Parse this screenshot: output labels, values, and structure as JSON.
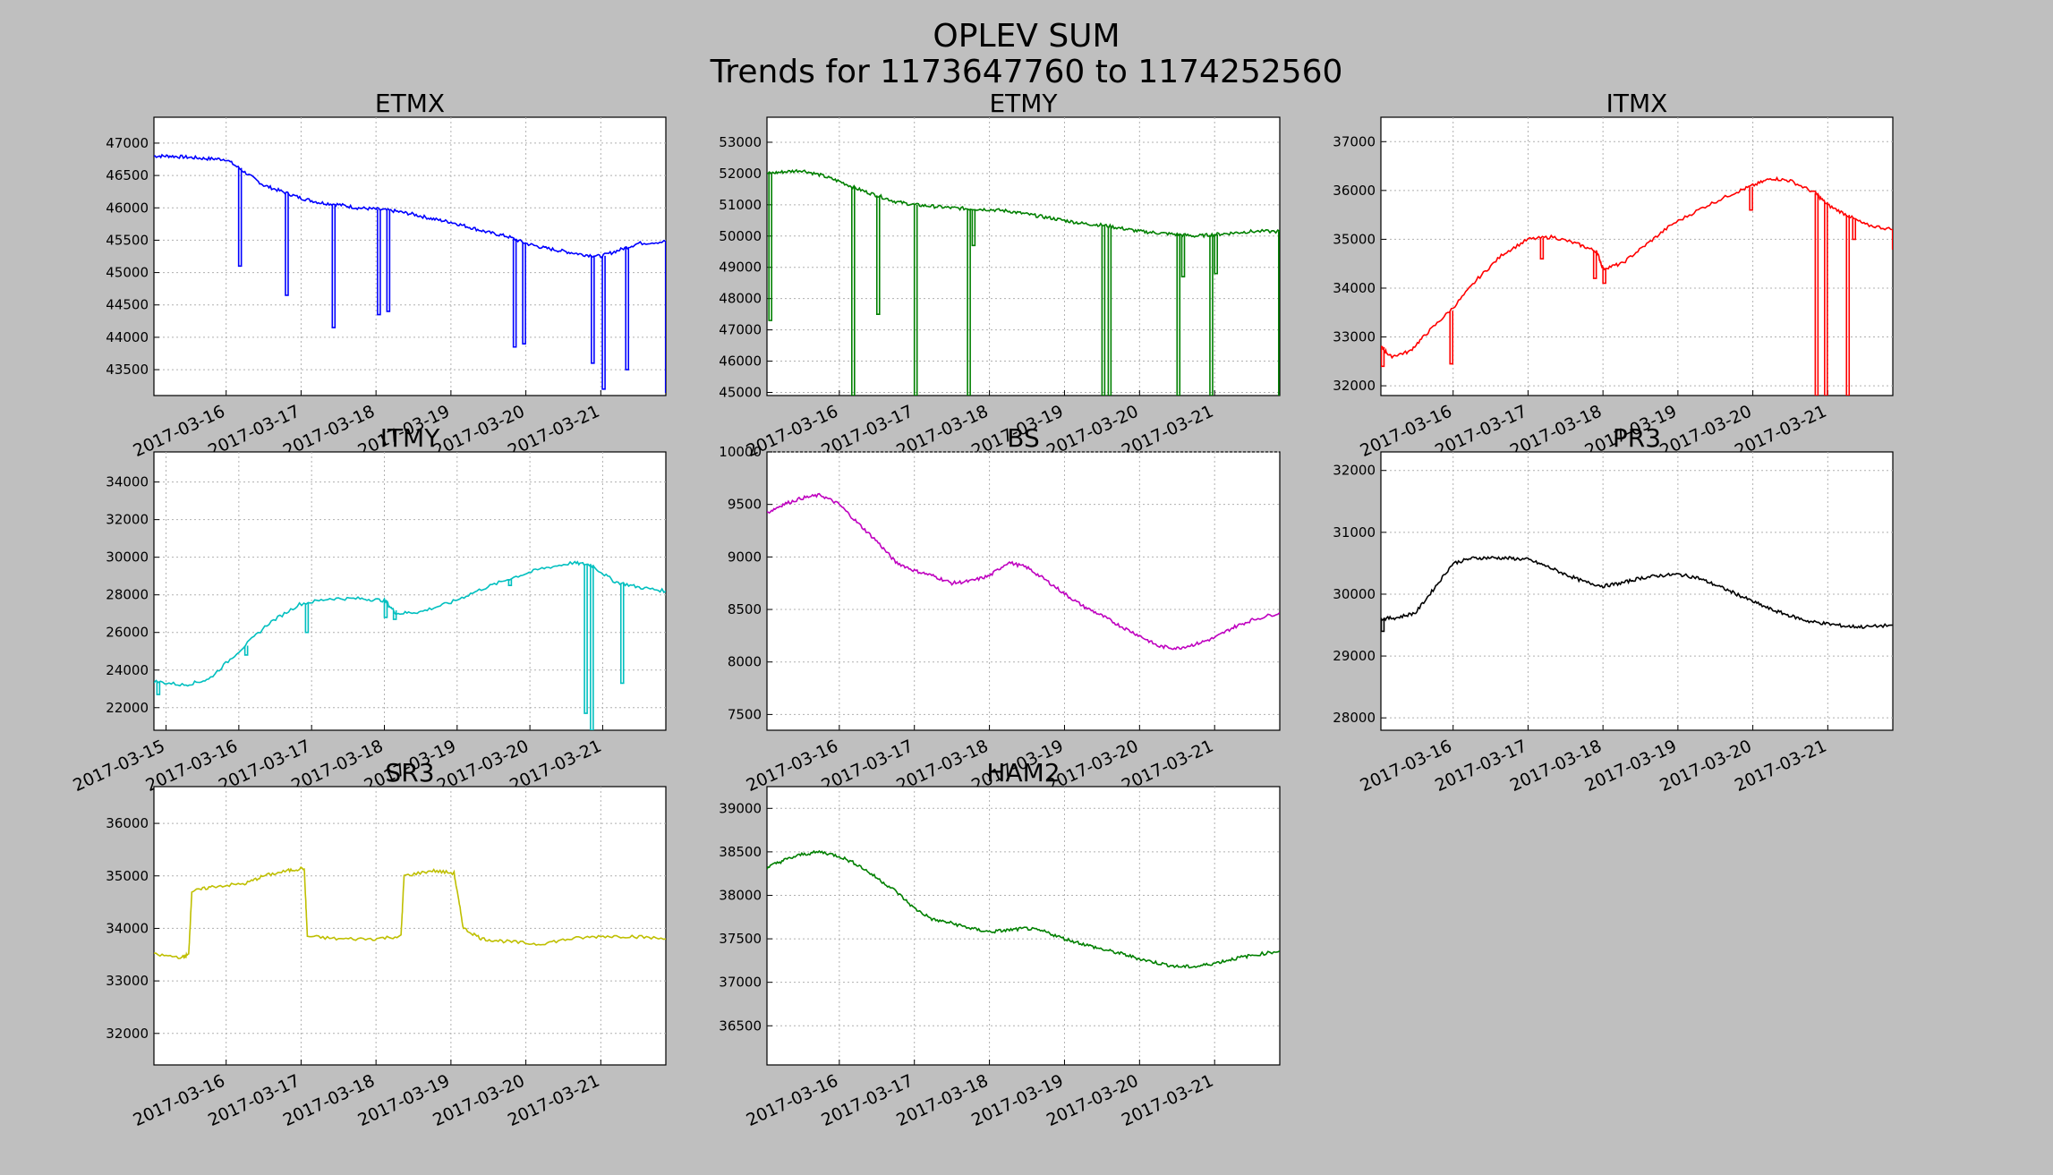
{
  "figure": {
    "title_line1": "OPLEV SUM",
    "title_line2": "Trends for 1173647760 to 1174252560"
  },
  "chart_data": [
    {
      "type": "line",
      "title": "ETMX",
      "color": "#0000ff",
      "xlim": [
        "2017-03-15T00:52",
        "2017-03-21T20:50"
      ],
      "xticks": [
        "2017-03-16",
        "2017-03-17",
        "2017-03-18",
        "2017-03-19",
        "2017-03-20",
        "2017-03-21"
      ],
      "ylim": [
        43100,
        47400
      ],
      "yticks": [
        43500,
        44000,
        44500,
        45000,
        45500,
        46000,
        46500,
        47000
      ],
      "grid": true,
      "series": [
        {
          "x": [
            "2017-03-15T00:52",
            "2017-03-15T06:00",
            "2017-03-15T12:00",
            "2017-03-15T18:00",
            "2017-03-16T00:00",
            "2017-03-16T06:00",
            "2017-03-16T12:00",
            "2017-03-16T18:00",
            "2017-03-17T00:00",
            "2017-03-17T06:00",
            "2017-03-17T12:00",
            "2017-03-17T18:00",
            "2017-03-18T00:00",
            "2017-03-18T06:00",
            "2017-03-18T12:00",
            "2017-03-18T18:00",
            "2017-03-19T00:00",
            "2017-03-19T06:00",
            "2017-03-19T12:00",
            "2017-03-19T18:00",
            "2017-03-20T00:00",
            "2017-03-20T06:00",
            "2017-03-20T12:00",
            "2017-03-20T18:00",
            "2017-03-21T00:00",
            "2017-03-21T06:00",
            "2017-03-21T12:00",
            "2017-03-21T20:50"
          ],
          "values": [
            46800,
            46800,
            46780,
            46760,
            46750,
            46550,
            46350,
            46250,
            46150,
            46080,
            46050,
            46000,
            45980,
            45950,
            45900,
            45830,
            45780,
            45700,
            45620,
            45560,
            45450,
            45380,
            45330,
            45280,
            45250,
            45350,
            45450,
            45480
          ]
        }
      ],
      "dips": [
        {
          "x": "2017-03-16T04:00",
          "v": 45100
        },
        {
          "x": "2017-03-16T19:00",
          "v": 44650
        },
        {
          "x": "2017-03-17T10:00",
          "v": 44150
        },
        {
          "x": "2017-03-18T00:30",
          "v": 44350
        },
        {
          "x": "2017-03-18T03:30",
          "v": 44400
        },
        {
          "x": "2017-03-19T20:00",
          "v": 43850
        },
        {
          "x": "2017-03-19T23:00",
          "v": 43900
        },
        {
          "x": "2017-03-20T21:00",
          "v": 43600
        },
        {
          "x": "2017-03-21T00:30",
          "v": 43200
        },
        {
          "x": "2017-03-21T08:00",
          "v": 43500
        },
        {
          "x": "2017-03-21T20:45",
          "v": 43150
        }
      ]
    },
    {
      "type": "line",
      "title": "ETMY",
      "color": "#008000",
      "xlim": [
        "2017-03-15T00:52",
        "2017-03-21T20:50"
      ],
      "xticks": [
        "2017-03-16",
        "2017-03-17",
        "2017-03-18",
        "2017-03-19",
        "2017-03-20",
        "2017-03-21"
      ],
      "ylim": [
        44900,
        53800
      ],
      "yticks": [
        45000,
        46000,
        47000,
        48000,
        49000,
        50000,
        51000,
        52000,
        53000
      ],
      "grid": true,
      "series": [
        {
          "x": [
            "2017-03-15T00:52",
            "2017-03-15T06:00",
            "2017-03-15T12:00",
            "2017-03-15T18:00",
            "2017-03-16T00:00",
            "2017-03-16T06:00",
            "2017-03-16T12:00",
            "2017-03-16T18:00",
            "2017-03-17T00:00",
            "2017-03-17T06:00",
            "2017-03-17T12:00",
            "2017-03-17T18:00",
            "2017-03-18T00:00",
            "2017-03-18T06:00",
            "2017-03-18T12:00",
            "2017-03-18T18:00",
            "2017-03-19T00:00",
            "2017-03-19T06:00",
            "2017-03-19T12:00",
            "2017-03-19T18:00",
            "2017-03-20T00:00",
            "2017-03-20T06:00",
            "2017-03-20T12:00",
            "2017-03-20T18:00",
            "2017-03-21T00:00",
            "2017-03-21T06:00",
            "2017-03-21T12:00",
            "2017-03-21T20:50"
          ],
          "values": [
            52000,
            52050,
            52100,
            51950,
            51750,
            51500,
            51300,
            51100,
            51000,
            50950,
            50900,
            50870,
            50850,
            50800,
            50700,
            50600,
            50500,
            50400,
            50350,
            50250,
            50150,
            50100,
            50050,
            50000,
            50050,
            50100,
            50150,
            50150
          ]
        }
      ],
      "dips": [
        {
          "x": "2017-03-15T01:30",
          "v": 47300
        },
        {
          "x": "2017-03-16T04:00",
          "v": 44900
        },
        {
          "x": "2017-03-16T12:00",
          "v": 47500
        },
        {
          "x": "2017-03-17T00:00",
          "v": 44900
        },
        {
          "x": "2017-03-17T17:00",
          "v": 44900
        },
        {
          "x": "2017-03-17T18:30",
          "v": 49700
        },
        {
          "x": "2017-03-19T12:00",
          "v": 44900
        },
        {
          "x": "2017-03-19T14:00",
          "v": 44900
        },
        {
          "x": "2017-03-20T12:00",
          "v": 44900
        },
        {
          "x": "2017-03-20T13:30",
          "v": 48700
        },
        {
          "x": "2017-03-20T22:30",
          "v": 44900
        },
        {
          "x": "2017-03-21T00:00",
          "v": 48800
        },
        {
          "x": "2017-03-21T20:30",
          "v": 44900
        }
      ]
    },
    {
      "type": "line",
      "title": "ITMX",
      "color": "#ff0000",
      "xlim": [
        "2017-03-15T00:52",
        "2017-03-21T20:50"
      ],
      "xticks": [
        "2017-03-16",
        "2017-03-17",
        "2017-03-18",
        "2017-03-19",
        "2017-03-20",
        "2017-03-21"
      ],
      "ylim": [
        31800,
        37500
      ],
      "yticks": [
        32000,
        33000,
        34000,
        35000,
        36000,
        37000
      ],
      "grid": true,
      "series": [
        {
          "x": [
            "2017-03-15T00:52",
            "2017-03-15T04:00",
            "2017-03-15T10:00",
            "2017-03-15T16:00",
            "2017-03-16T00:00",
            "2017-03-16T08:00",
            "2017-03-16T16:00",
            "2017-03-17T00:00",
            "2017-03-17T08:00",
            "2017-03-17T16:00",
            "2017-03-17T22:00",
            "2017-03-18T00:00",
            "2017-03-18T06:00",
            "2017-03-18T14:00",
            "2017-03-18T22:00",
            "2017-03-19T08:00",
            "2017-03-19T18:00",
            "2017-03-20T00:00",
            "2017-03-20T06:00",
            "2017-03-20T12:00",
            "2017-03-20T20:00",
            "2017-03-21T00:00",
            "2017-03-21T06:00",
            "2017-03-21T12:00",
            "2017-03-21T20:50"
          ],
          "values": [
            32800,
            32600,
            32700,
            33100,
            33600,
            34200,
            34700,
            35000,
            35050,
            34900,
            34750,
            34400,
            34500,
            34900,
            35300,
            35650,
            35950,
            36100,
            36250,
            36200,
            35950,
            35700,
            35500,
            35300,
            35200
          ]
        }
      ],
      "dips": [
        {
          "x": "2017-03-15T01:00",
          "v": 32400
        },
        {
          "x": "2017-03-15T23:00",
          "v": 32450
        },
        {
          "x": "2017-03-17T04:00",
          "v": 34600
        },
        {
          "x": "2017-03-17T21:00",
          "v": 34200
        },
        {
          "x": "2017-03-18T00:00",
          "v": 34100
        },
        {
          "x": "2017-03-19T23:00",
          "v": 35600
        },
        {
          "x": "2017-03-20T20:00",
          "v": 31800
        },
        {
          "x": "2017-03-20T23:00",
          "v": 31800
        },
        {
          "x": "2017-03-21T06:00",
          "v": 31800
        },
        {
          "x": "2017-03-21T08:00",
          "v": 35000
        },
        {
          "x": "2017-03-21T20:45",
          "v": 34800
        }
      ]
    },
    {
      "type": "line",
      "title": "ITMY",
      "color": "#00bfbf",
      "xlim": [
        "2017-03-14T20:00",
        "2017-03-21T20:50"
      ],
      "xticks": [
        "2017-03-15",
        "2017-03-16",
        "2017-03-17",
        "2017-03-18",
        "2017-03-19",
        "2017-03-20",
        "2017-03-21"
      ],
      "ylim": [
        20800,
        35600
      ],
      "yticks": [
        22000,
        24000,
        26000,
        28000,
        30000,
        32000,
        34000
      ],
      "grid": true,
      "series": [
        {
          "x": [
            "2017-03-14T20:00",
            "2017-03-15T06:00",
            "2017-03-15T14:00",
            "2017-03-16T00:00",
            "2017-03-16T10:00",
            "2017-03-16T20:00",
            "2017-03-17T06:00",
            "2017-03-17T16:00",
            "2017-03-18T00:00",
            "2017-03-18T04:00",
            "2017-03-18T12:00",
            "2017-03-18T22:00",
            "2017-03-19T08:00",
            "2017-03-19T18:00",
            "2017-03-20T04:00",
            "2017-03-20T14:00",
            "2017-03-20T20:00",
            "2017-03-21T04:00",
            "2017-03-21T12:00",
            "2017-03-21T20:50"
          ],
          "values": [
            23400,
            23200,
            23500,
            25000,
            26500,
            27500,
            27800,
            27800,
            27700,
            27000,
            27100,
            27600,
            28300,
            28900,
            29400,
            29700,
            29600,
            28700,
            28400,
            28200
          ]
        }
      ],
      "dips": [
        {
          "x": "2017-03-14T21:00",
          "v": 22700
        },
        {
          "x": "2017-03-16T02:00",
          "v": 24800
        },
        {
          "x": "2017-03-16T22:00",
          "v": 26000
        },
        {
          "x": "2017-03-18T00:00",
          "v": 26800
        },
        {
          "x": "2017-03-18T03:00",
          "v": 26700
        },
        {
          "x": "2017-03-19T17:00",
          "v": 28500
        },
        {
          "x": "2017-03-20T18:00",
          "v": 21700
        },
        {
          "x": "2017-03-20T20:00",
          "v": 20800
        },
        {
          "x": "2017-03-21T06:00",
          "v": 23300
        }
      ]
    },
    {
      "type": "line",
      "title": "BS",
      "color": "#bf00bf",
      "xlim": [
        "2017-03-15T00:52",
        "2017-03-21T20:50"
      ],
      "xticks": [
        "2017-03-16",
        "2017-03-17",
        "2017-03-18",
        "2017-03-19",
        "2017-03-20",
        "2017-03-21"
      ],
      "ylim": [
        7350,
        10000
      ],
      "yticks": [
        7500,
        8000,
        8500,
        9000,
        9500,
        10000
      ],
      "grid": true,
      "series": [
        {
          "x": [
            "2017-03-15T00:52",
            "2017-03-15T06:00",
            "2017-03-15T12:00",
            "2017-03-15T18:00",
            "2017-03-16T00:00",
            "2017-03-16T06:00",
            "2017-03-16T12:00",
            "2017-03-16T18:00",
            "2017-03-17T00:00",
            "2017-03-17T06:00",
            "2017-03-17T12:00",
            "2017-03-17T18:00",
            "2017-03-18T00:00",
            "2017-03-18T06:00",
            "2017-03-18T12:00",
            "2017-03-18T18:00",
            "2017-03-19T00:00",
            "2017-03-19T06:00",
            "2017-03-19T12:00",
            "2017-03-19T18:00",
            "2017-03-20T00:00",
            "2017-03-20T06:00",
            "2017-03-20T12:00",
            "2017-03-20T18:00",
            "2017-03-21T00:00",
            "2017-03-21T06:00",
            "2017-03-21T12:00",
            "2017-03-21T20:50"
          ],
          "values": [
            9420,
            9500,
            9560,
            9590,
            9500,
            9320,
            9150,
            8950,
            8870,
            8820,
            8750,
            8770,
            8820,
            8950,
            8900,
            8780,
            8650,
            8530,
            8440,
            8340,
            8250,
            8150,
            8130,
            8170,
            8230,
            8330,
            8400,
            8470
          ]
        }
      ],
      "dips": []
    },
    {
      "type": "line",
      "title": "PR3",
      "color": "#000000",
      "xlim": [
        "2017-03-15T00:52",
        "2017-03-21T20:50"
      ],
      "xticks": [
        "2017-03-16",
        "2017-03-17",
        "2017-03-18",
        "2017-03-19",
        "2017-03-20",
        "2017-03-21"
      ],
      "ylim": [
        27800,
        32300
      ],
      "yticks": [
        28000,
        29000,
        30000,
        31000,
        32000
      ],
      "grid": true,
      "series": [
        {
          "x": [
            "2017-03-15T00:52",
            "2017-03-15T06:00",
            "2017-03-15T12:00",
            "2017-03-15T18:00",
            "2017-03-16T00:00",
            "2017-03-16T06:00",
            "2017-03-16T12:00",
            "2017-03-16T18:00",
            "2017-03-17T00:00",
            "2017-03-17T06:00",
            "2017-03-17T12:00",
            "2017-03-17T18:00",
            "2017-03-18T00:00",
            "2017-03-18T06:00",
            "2017-03-18T12:00",
            "2017-03-18T18:00",
            "2017-03-19T00:00",
            "2017-03-19T06:00",
            "2017-03-19T12:00",
            "2017-03-19T18:00",
            "2017-03-20T00:00",
            "2017-03-20T06:00",
            "2017-03-20T12:00",
            "2017-03-20T18:00",
            "2017-03-21T00:00",
            "2017-03-21T06:00",
            "2017-03-21T12:00",
            "2017-03-21T20:50"
          ],
          "values": [
            29600,
            29620,
            29700,
            30100,
            30500,
            30580,
            30590,
            30580,
            30560,
            30450,
            30320,
            30200,
            30130,
            30180,
            30260,
            30300,
            30320,
            30270,
            30150,
            30020,
            29880,
            29750,
            29650,
            29560,
            29520,
            29480,
            29470,
            29500
          ]
        }
      ],
      "dips": [
        {
          "x": "2017-03-15T01:00",
          "v": 29400
        }
      ]
    },
    {
      "type": "line",
      "title": "SR3",
      "color": "#bfbf00",
      "xlim": [
        "2017-03-15T00:52",
        "2017-03-21T20:50"
      ],
      "xticks": [
        "2017-03-16",
        "2017-03-17",
        "2017-03-18",
        "2017-03-19",
        "2017-03-20",
        "2017-03-21"
      ],
      "ylim": [
        31400,
        36700
      ],
      "yticks": [
        32000,
        33000,
        34000,
        35000,
        36000
      ],
      "grid": true,
      "series": [
        {
          "x": [
            "2017-03-15T00:52",
            "2017-03-15T10:00",
            "2017-03-15T12:00",
            "2017-03-15T13:00",
            "2017-03-15T20:00",
            "2017-03-16T06:00",
            "2017-03-16T12:00",
            "2017-03-16T20:00",
            "2017-03-17T01:00",
            "2017-03-17T02:00",
            "2017-03-17T12:00",
            "2017-03-17T23:00",
            "2017-03-18T08:00",
            "2017-03-18T09:00",
            "2017-03-18T18:00",
            "2017-03-19T01:00",
            "2017-03-19T04:00",
            "2017-03-19T10:00",
            "2017-03-19T18:00",
            "2017-03-20T04:00",
            "2017-03-20T14:00",
            "2017-03-21T00:00",
            "2017-03-21T10:00",
            "2017-03-21T20:50"
          ],
          "values": [
            33500,
            33450,
            33500,
            34700,
            34800,
            34850,
            35000,
            35100,
            35150,
            33850,
            33800,
            33800,
            33850,
            35000,
            35100,
            35050,
            34000,
            33800,
            33750,
            33700,
            33800,
            33850,
            33850,
            33800
          ]
        }
      ],
      "dips": []
    },
    {
      "type": "line",
      "title": "HAM2",
      "color": "#008000",
      "xlim": [
        "2017-03-15T00:52",
        "2017-03-21T20:50"
      ],
      "xticks": [
        "2017-03-16",
        "2017-03-17",
        "2017-03-18",
        "2017-03-19",
        "2017-03-20",
        "2017-03-21"
      ],
      "ylim": [
        36050,
        39250
      ],
      "yticks": [
        36500,
        37000,
        37500,
        38000,
        38500,
        39000
      ],
      "grid": true,
      "series": [
        {
          "x": [
            "2017-03-15T00:52",
            "2017-03-15T06:00",
            "2017-03-15T12:00",
            "2017-03-15T18:00",
            "2017-03-16T00:00",
            "2017-03-16T06:00",
            "2017-03-16T12:00",
            "2017-03-16T18:00",
            "2017-03-17T00:00",
            "2017-03-17T06:00",
            "2017-03-17T12:00",
            "2017-03-17T18:00",
            "2017-03-18T00:00",
            "2017-03-18T06:00",
            "2017-03-18T12:00",
            "2017-03-18T18:00",
            "2017-03-19T00:00",
            "2017-03-19T06:00",
            "2017-03-19T12:00",
            "2017-03-19T18:00",
            "2017-03-20T00:00",
            "2017-03-20T06:00",
            "2017-03-20T12:00",
            "2017-03-20T18:00",
            "2017-03-21T00:00",
            "2017-03-21T06:00",
            "2017-03-21T12:00",
            "2017-03-21T20:50"
          ],
          "values": [
            38320,
            38400,
            38470,
            38500,
            38450,
            38350,
            38200,
            38050,
            37850,
            37720,
            37680,
            37620,
            37580,
            37600,
            37620,
            37580,
            37500,
            37440,
            37380,
            37330,
            37270,
            37220,
            37180,
            37180,
            37220,
            37270,
            37310,
            37360
          ]
        }
      ],
      "dips": []
    }
  ]
}
